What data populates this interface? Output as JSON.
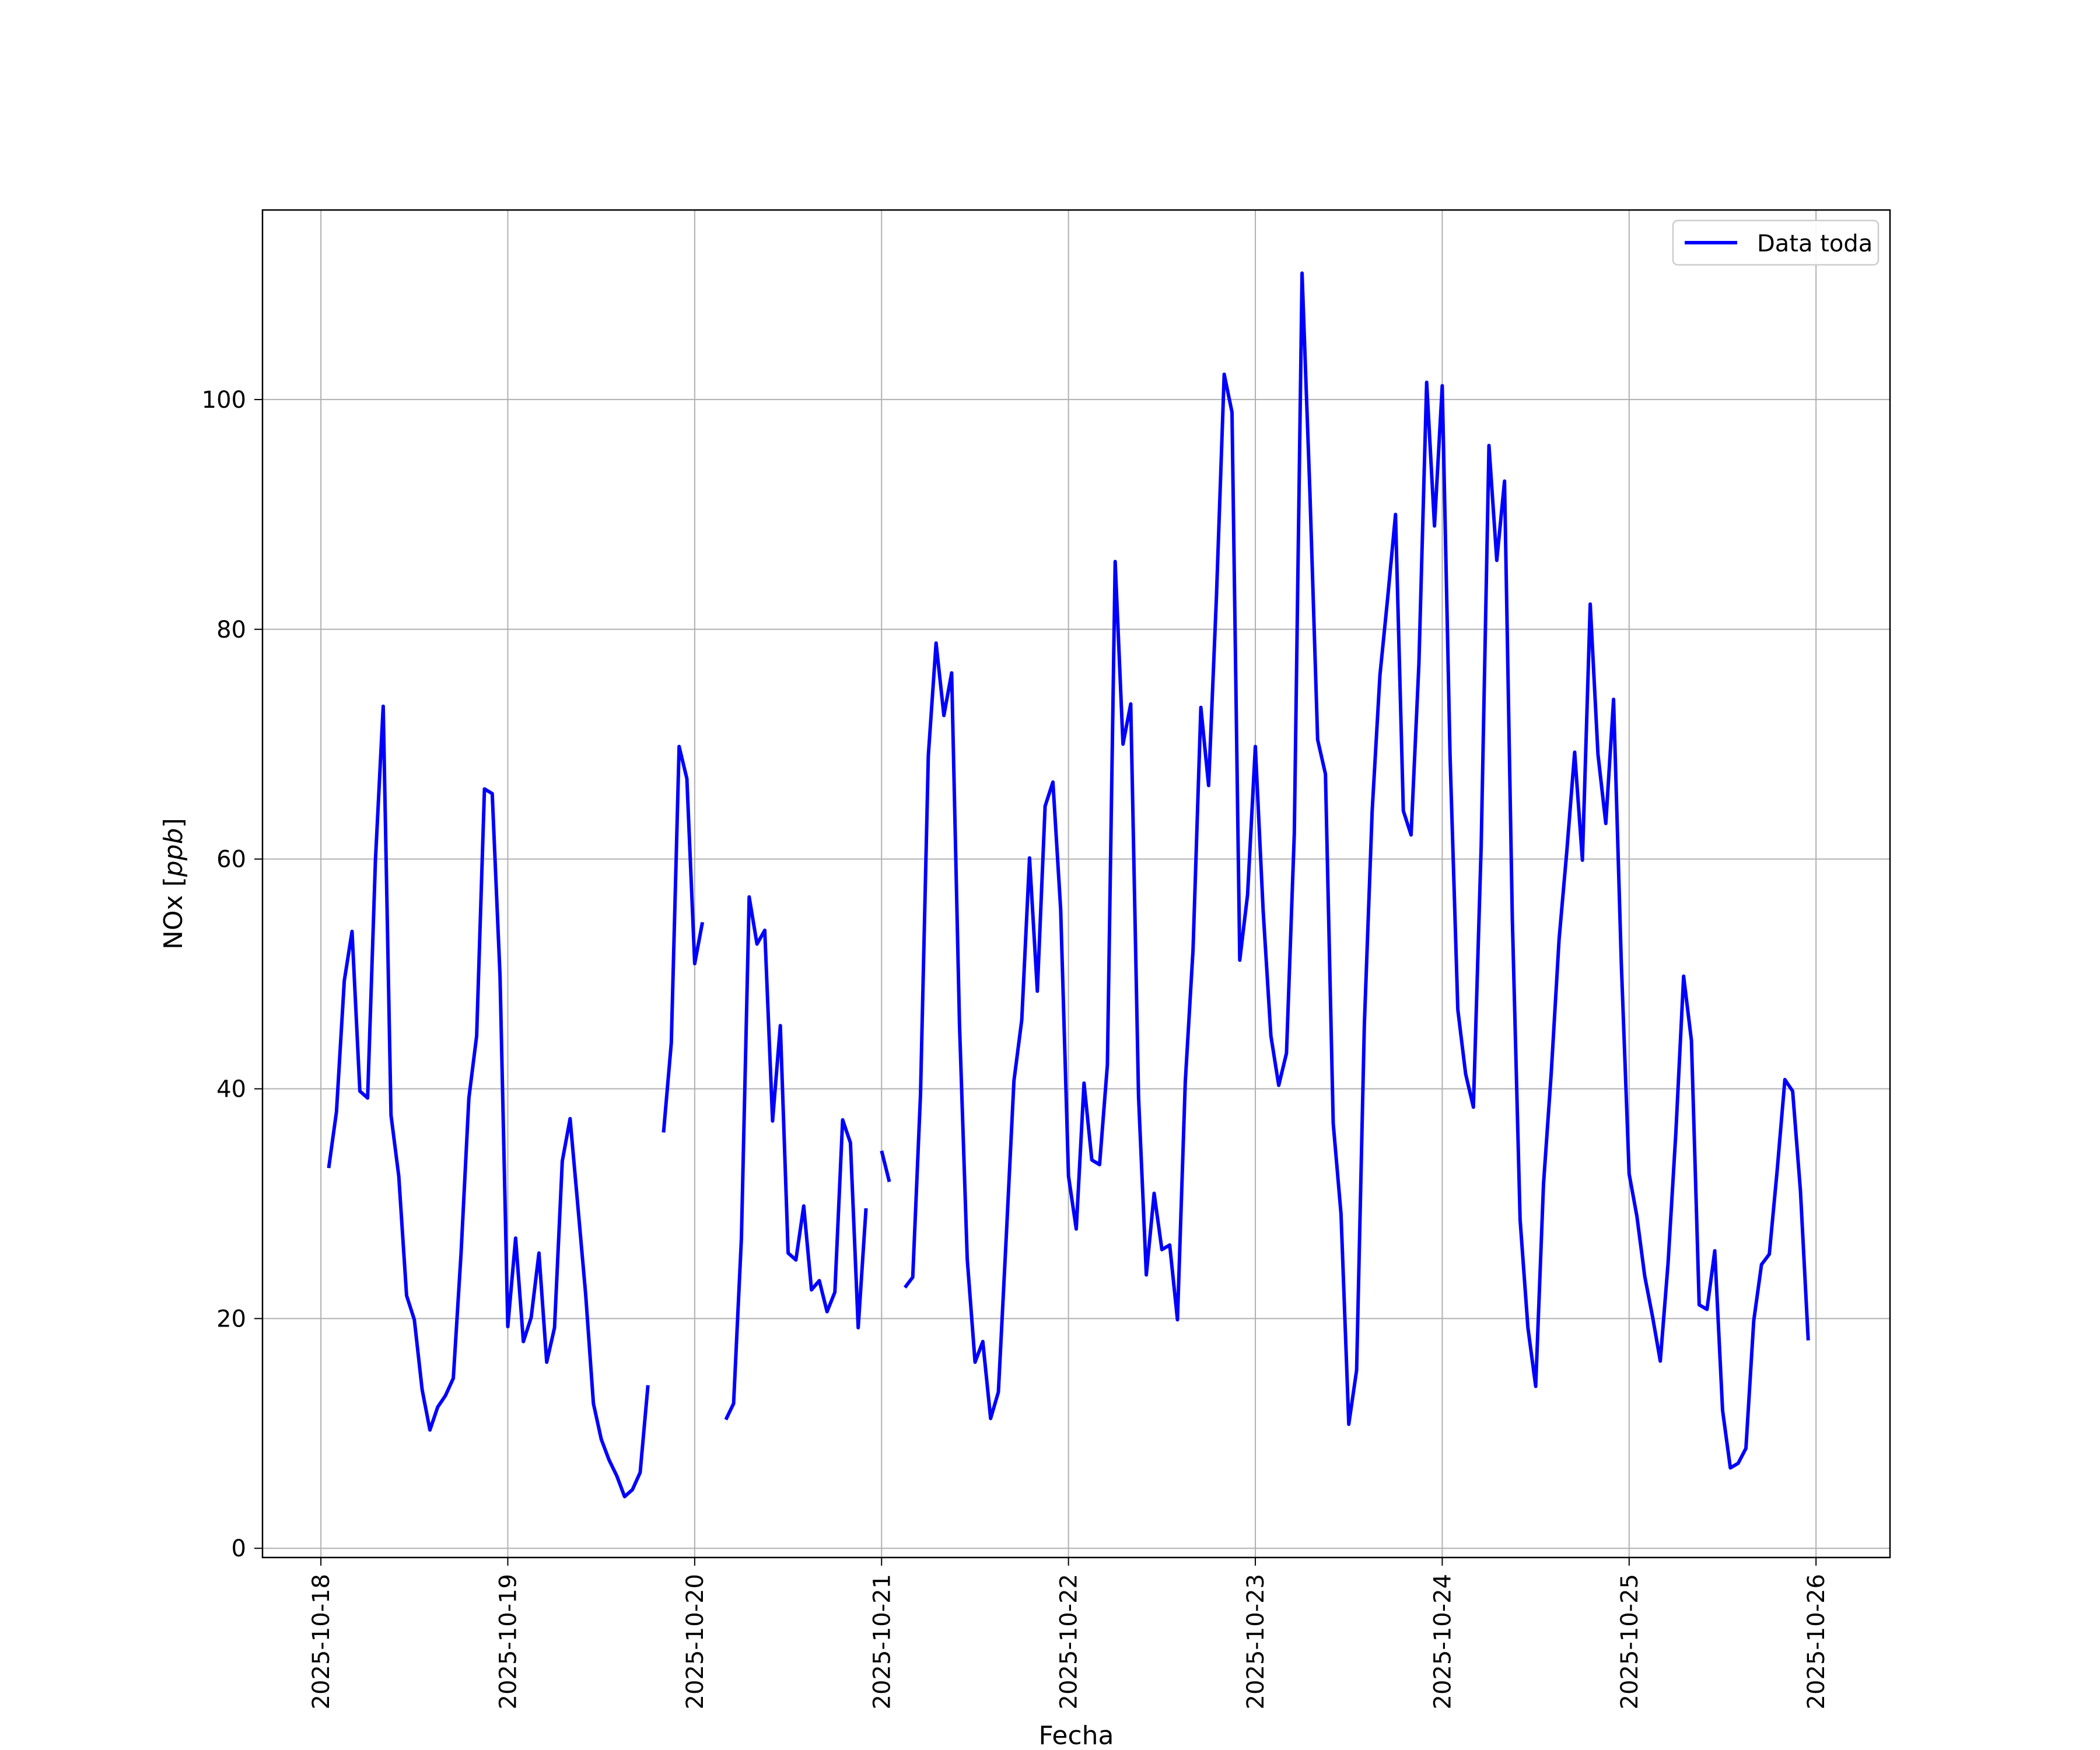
{
  "chart_data": {
    "type": "line",
    "title": "",
    "xlabel": "Fecha",
    "ylabel_prefix": "NOx [",
    "ylabel_unit": "ppb",
    "ylabel_suffix": "]",
    "xlim": [
      "2025-10-17 16:30",
      "2025-10-26 09:30"
    ],
    "ylim": [
      -0.8,
      116.5
    ],
    "x_ticks": [
      "2025-10-18",
      "2025-10-19",
      "2025-10-20",
      "2025-10-21",
      "2025-10-22",
      "2025-10-23",
      "2025-10-24",
      "2025-10-25",
      "2025-10-26"
    ],
    "y_ticks": [
      0,
      20,
      40,
      60,
      80,
      100
    ],
    "grid": true,
    "legend": {
      "placement": "upper right",
      "entries": [
        "Data toda"
      ]
    },
    "series": [
      {
        "name": "Data toda",
        "color": "#0000ff",
        "segments": [
          [
            [
              "2025-10-18 01:00",
              33.1
            ],
            [
              "2025-10-18 02:00",
              38.0
            ],
            [
              "2025-10-18 03:00",
              49.4
            ],
            [
              "2025-10-18 04:00",
              53.7
            ],
            [
              "2025-10-18 05:00",
              39.8
            ],
            [
              "2025-10-18 06:00",
              39.2
            ],
            [
              "2025-10-18 07:00",
              59.9
            ],
            [
              "2025-10-18 08:00",
              73.3
            ],
            [
              "2025-10-18 09:00",
              37.7
            ],
            [
              "2025-10-18 10:00",
              32.4
            ],
            [
              "2025-10-18 11:00",
              22.0
            ],
            [
              "2025-10-18 12:00",
              19.9
            ],
            [
              "2025-10-18 13:00",
              13.8
            ],
            [
              "2025-10-18 14:00",
              10.3
            ],
            [
              "2025-10-18 15:00",
              12.3
            ],
            [
              "2025-10-18 16:00",
              13.3
            ],
            [
              "2025-10-18 17:00",
              14.8
            ],
            [
              "2025-10-18 18:00",
              25.7
            ],
            [
              "2025-10-18 19:00",
              39.2
            ],
            [
              "2025-10-18 20:00",
              44.6
            ],
            [
              "2025-10-18 21:00",
              66.1
            ],
            [
              "2025-10-18 22:00",
              65.7
            ],
            [
              "2025-10-18 23:00",
              49.8
            ],
            [
              "2025-10-19 00:00",
              19.3
            ],
            [
              "2025-10-19 01:00",
              27.0
            ],
            [
              "2025-10-19 02:00",
              18.0
            ],
            [
              "2025-10-19 03:00",
              20.1
            ],
            [
              "2025-10-19 04:00",
              25.7
            ],
            [
              "2025-10-19 05:00",
              16.2
            ],
            [
              "2025-10-19 06:00",
              19.2
            ],
            [
              "2025-10-19 07:00",
              33.7
            ],
            [
              "2025-10-19 08:00",
              37.4
            ],
            [
              "2025-10-19 09:00",
              29.8
            ],
            [
              "2025-10-19 10:00",
              22.1
            ],
            [
              "2025-10-19 11:00",
              12.6
            ],
            [
              "2025-10-19 12:00",
              9.5
            ],
            [
              "2025-10-19 13:00",
              7.7
            ],
            [
              "2025-10-19 14:00",
              6.3
            ],
            [
              "2025-10-19 15:00",
              4.5
            ],
            [
              "2025-10-19 16:00",
              5.1
            ],
            [
              "2025-10-19 17:00",
              6.6
            ],
            [
              "2025-10-19 18:00",
              14.2
            ]
          ],
          [
            [
              "2025-10-19 20:00",
              36.2
            ],
            [
              "2025-10-19 21:00",
              44.0
            ],
            [
              "2025-10-19 22:00",
              69.8
            ],
            [
              "2025-10-19 23:00",
              67.0
            ],
            [
              "2025-10-20 00:00",
              50.9
            ],
            [
              "2025-10-20 01:00",
              54.5
            ]
          ],
          [
            [
              "2025-10-20 04:00",
              11.2
            ],
            [
              "2025-10-20 05:00",
              12.6
            ],
            [
              "2025-10-20 06:00",
              27.0
            ],
            [
              "2025-10-20 07:00",
              56.7
            ],
            [
              "2025-10-20 08:00",
              52.6
            ],
            [
              "2025-10-20 09:00",
              53.8
            ],
            [
              "2025-10-20 10:00",
              37.2
            ],
            [
              "2025-10-20 11:00",
              45.5
            ],
            [
              "2025-10-20 12:00",
              25.7
            ],
            [
              "2025-10-20 13:00",
              25.1
            ],
            [
              "2025-10-20 14:00",
              29.8
            ],
            [
              "2025-10-20 15:00",
              22.5
            ],
            [
              "2025-10-20 16:00",
              23.3
            ],
            [
              "2025-10-20 17:00",
              20.6
            ],
            [
              "2025-10-20 18:00",
              22.3
            ],
            [
              "2025-10-20 19:00",
              37.3
            ],
            [
              "2025-10-20 20:00",
              35.3
            ],
            [
              "2025-10-20 21:00",
              19.2
            ],
            [
              "2025-10-20 22:00",
              29.6
            ]
          ],
          [
            [
              "2025-10-21 00:00",
              34.6
            ],
            [
              "2025-10-21 01:00",
              31.9
            ]
          ],
          [
            [
              "2025-10-21 03:00",
              22.7
            ],
            [
              "2025-10-21 04:00",
              23.6
            ],
            [
              "2025-10-21 05:00",
              39.5
            ],
            [
              "2025-10-21 06:00",
              69.0
            ],
            [
              "2025-10-21 07:00",
              78.8
            ],
            [
              "2025-10-21 08:00",
              72.5
            ],
            [
              "2025-10-21 09:00",
              76.2
            ],
            [
              "2025-10-21 10:00",
              45.7
            ],
            [
              "2025-10-21 11:00",
              25.2
            ],
            [
              "2025-10-21 12:00",
              16.2
            ],
            [
              "2025-10-21 13:00",
              18.0
            ],
            [
              "2025-10-21 14:00",
              11.3
            ],
            [
              "2025-10-21 15:00",
              13.6
            ],
            [
              "2025-10-21 16:00",
              27.0
            ],
            [
              "2025-10-21 17:00",
              40.7
            ],
            [
              "2025-10-21 18:00",
              46.0
            ],
            [
              "2025-10-21 19:00",
              60.1
            ],
            [
              "2025-10-21 20:00",
              48.5
            ],
            [
              "2025-10-21 21:00",
              64.6
            ],
            [
              "2025-10-21 22:00",
              66.7
            ],
            [
              "2025-10-21 23:00",
              55.6
            ],
            [
              "2025-10-22 00:00",
              32.4
            ],
            [
              "2025-10-22 01:00",
              27.8
            ],
            [
              "2025-10-22 02:00",
              40.5
            ],
            [
              "2025-10-22 03:00",
              33.8
            ],
            [
              "2025-10-22 04:00",
              33.4
            ],
            [
              "2025-10-22 05:00",
              42.1
            ],
            [
              "2025-10-22 06:00",
              85.9
            ],
            [
              "2025-10-22 07:00",
              70.0
            ],
            [
              "2025-10-22 08:00",
              73.5
            ],
            [
              "2025-10-22 09:00",
              39.3
            ],
            [
              "2025-10-22 10:00",
              23.8
            ],
            [
              "2025-10-22 11:00",
              30.9
            ],
            [
              "2025-10-22 12:00",
              26.0
            ],
            [
              "2025-10-22 13:00",
              26.4
            ],
            [
              "2025-10-22 14:00",
              19.9
            ],
            [
              "2025-10-22 15:00",
              40.6
            ],
            [
              "2025-10-22 16:00",
              52.1
            ],
            [
              "2025-10-22 17:00",
              73.2
            ],
            [
              "2025-10-22 18:00",
              66.4
            ],
            [
              "2025-10-22 19:00",
              82.8
            ],
            [
              "2025-10-22 20:00",
              102.2
            ],
            [
              "2025-10-22 21:00",
              98.9
            ],
            [
              "2025-10-22 22:00",
              51.2
            ],
            [
              "2025-10-22 23:00",
              56.9
            ],
            [
              "2025-10-23 00:00",
              69.8
            ],
            [
              "2025-10-23 01:00",
              55.5
            ],
            [
              "2025-10-23 02:00",
              44.6
            ],
            [
              "2025-10-23 03:00",
              40.3
            ],
            [
              "2025-10-23 04:00",
              43.1
            ],
            [
              "2025-10-23 05:00",
              62.2
            ],
            [
              "2025-10-23 06:00",
              111.0
            ],
            [
              "2025-10-23 07:00",
              92.0
            ],
            [
              "2025-10-23 08:00",
              70.4
            ],
            [
              "2025-10-23 09:00",
              67.4
            ],
            [
              "2025-10-23 10:00",
              37.0
            ],
            [
              "2025-10-23 11:00",
              29.1
            ],
            [
              "2025-10-23 12:00",
              10.8
            ],
            [
              "2025-10-23 13:00",
              15.5
            ],
            [
              "2025-10-23 14:00",
              45.6
            ],
            [
              "2025-10-23 15:00",
              64.2
            ],
            [
              "2025-10-23 16:00",
              76.0
            ],
            [
              "2025-10-23 17:00",
              82.8
            ],
            [
              "2025-10-23 18:00",
              90.0
            ],
            [
              "2025-10-23 19:00",
              64.2
            ],
            [
              "2025-10-23 20:00",
              62.1
            ],
            [
              "2025-10-23 21:00",
              77.0
            ],
            [
              "2025-10-23 22:00",
              101.5
            ],
            [
              "2025-10-23 23:00",
              89.0
            ],
            [
              "2025-10-24 00:00",
              101.2
            ],
            [
              "2025-10-24 01:00",
              69.0
            ],
            [
              "2025-10-24 02:00",
              46.9
            ],
            [
              "2025-10-24 03:00",
              41.3
            ],
            [
              "2025-10-24 04:00",
              38.4
            ],
            [
              "2025-10-24 05:00",
              61.2
            ],
            [
              "2025-10-24 06:00",
              96.0
            ],
            [
              "2025-10-24 07:00",
              86.0
            ],
            [
              "2025-10-24 08:00",
              92.9
            ],
            [
              "2025-10-24 09:00",
              54.7
            ],
            [
              "2025-10-24 10:00",
              28.6
            ],
            [
              "2025-10-24 11:00",
              19.2
            ],
            [
              "2025-10-24 12:00",
              14.1
            ],
            [
              "2025-10-24 13:00",
              31.7
            ],
            [
              "2025-10-24 14:00",
              41.4
            ],
            [
              "2025-10-24 15:00",
              53.0
            ],
            [
              "2025-10-24 16:00",
              60.7
            ],
            [
              "2025-10-24 17:00",
              69.3
            ],
            [
              "2025-10-24 18:00",
              59.9
            ],
            [
              "2025-10-24 19:00",
              82.2
            ],
            [
              "2025-10-24 20:00",
              69.1
            ],
            [
              "2025-10-24 21:00",
              63.1
            ],
            [
              "2025-10-24 22:00",
              73.9
            ],
            [
              "2025-10-24 23:00",
              50.9
            ],
            [
              "2025-10-25 00:00",
              32.6
            ],
            [
              "2025-10-25 01:00",
              28.9
            ],
            [
              "2025-10-25 02:00",
              23.7
            ],
            [
              "2025-10-25 03:00",
              20.2
            ],
            [
              "2025-10-25 04:00",
              16.3
            ],
            [
              "2025-10-25 05:00",
              24.8
            ],
            [
              "2025-10-25 06:00",
              36.2
            ],
            [
              "2025-10-25 07:00",
              49.8
            ],
            [
              "2025-10-25 08:00",
              44.2
            ],
            [
              "2025-10-25 09:00",
              21.2
            ],
            [
              "2025-10-25 10:00",
              20.8
            ],
            [
              "2025-10-25 11:00",
              25.9
            ],
            [
              "2025-10-25 12:00",
              12.0
            ],
            [
              "2025-10-25 13:00",
              7.0
            ],
            [
              "2025-10-25 14:00",
              7.4
            ],
            [
              "2025-10-25 15:00",
              8.7
            ],
            [
              "2025-10-25 16:00",
              19.8
            ],
            [
              "2025-10-25 17:00",
              24.7
            ],
            [
              "2025-10-25 18:00",
              25.6
            ],
            [
              "2025-10-25 19:00",
              32.8
            ],
            [
              "2025-10-25 20:00",
              40.8
            ],
            [
              "2025-10-25 21:00",
              39.8
            ],
            [
              "2025-10-25 22:00",
              31.1
            ],
            [
              "2025-10-25 23:00",
              18.1
            ]
          ]
        ]
      }
    ]
  }
}
